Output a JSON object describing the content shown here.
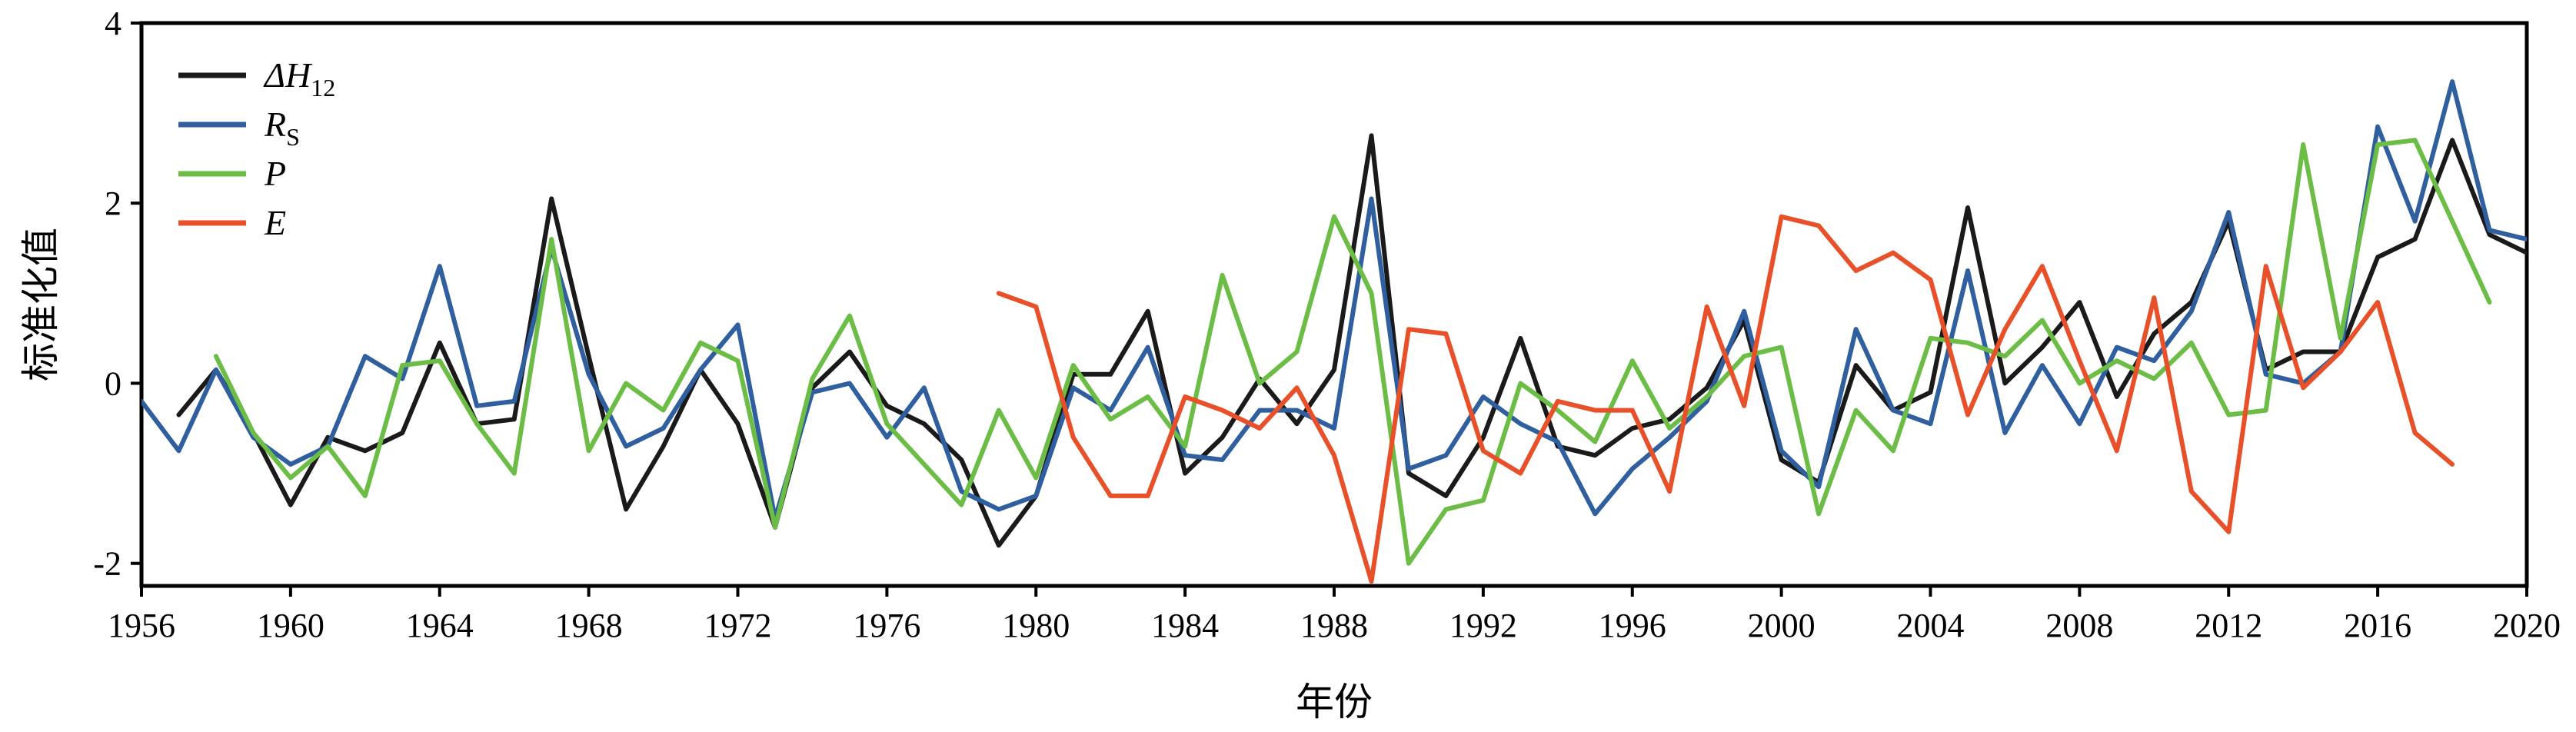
{
  "chart_data": {
    "type": "line",
    "xlabel": "年份",
    "ylabel": "标准化值",
    "xlim": [
      1956,
      2020
    ],
    "ylim": [
      -2.25,
      4
    ],
    "xticks": [
      "1956",
      "1960",
      "1964",
      "1968",
      "1972",
      "1976",
      "1980",
      "1984",
      "1988",
      "1992",
      "1996",
      "2000",
      "2004",
      "2008",
      "2012",
      "2016",
      "2020"
    ],
    "yticks": [
      "-2",
      "0",
      "2",
      "4"
    ],
    "legend_position": "top-left",
    "series": [
      {
        "key": "dH12",
        "legend_main": "ΔH",
        "legend_sub": "12",
        "color": "#1a1a1a",
        "x": [
          1957,
          1958,
          1959,
          1960,
          1961,
          1962,
          1963,
          1964,
          1965,
          1966,
          1967,
          1968,
          1969,
          1970,
          1971,
          1972,
          1973,
          1974,
          1975,
          1976,
          1977,
          1978,
          1979,
          1980,
          1981,
          1982,
          1983,
          1984,
          1985,
          1986,
          1987,
          1988,
          1989,
          1990,
          1991,
          1992,
          1993,
          1994,
          1995,
          1996,
          1997,
          1998,
          1999,
          2000,
          2001,
          2002,
          2003,
          2004,
          2005,
          2006,
          2007,
          2008,
          2009,
          2010,
          2011,
          2012,
          2013,
          2014,
          2015,
          2016,
          2017,
          2018,
          2019,
          2020
        ],
        "y": [
          -0.35,
          0.15,
          -0.55,
          -1.35,
          -0.6,
          -0.75,
          -0.55,
          0.45,
          -0.45,
          -0.4,
          2.05,
          0.3,
          -1.4,
          -0.7,
          0.15,
          -0.45,
          -1.6,
          -0.05,
          0.35,
          -0.25,
          -0.45,
          -0.85,
          -1.8,
          -1.25,
          0.1,
          0.1,
          0.8,
          -1.0,
          -0.6,
          0.05,
          -0.45,
          0.15,
          2.75,
          -1.0,
          -1.25,
          -0.6,
          0.5,
          -0.7,
          -0.8,
          -0.5,
          -0.4,
          -0.05,
          0.7,
          -0.85,
          -1.1,
          0.2,
          -0.3,
          -0.1,
          1.95,
          0.0,
          0.4,
          0.9,
          -0.15,
          0.55,
          0.9,
          1.8,
          0.15,
          0.35,
          0.35,
          1.4,
          1.6,
          2.7,
          1.65,
          1.45
        ]
      },
      {
        "key": "Rs",
        "legend_main": "R",
        "legend_sub": "S",
        "color": "#2f5f9f",
        "x": [
          1956,
          1957,
          1958,
          1959,
          1960,
          1961,
          1962,
          1963,
          1964,
          1965,
          1966,
          1967,
          1968,
          1969,
          1970,
          1971,
          1972,
          1973,
          1974,
          1975,
          1976,
          1977,
          1978,
          1979,
          1980,
          1981,
          1982,
          1983,
          1984,
          1985,
          1986,
          1987,
          1988,
          1989,
          1990,
          1991,
          1992,
          1993,
          1994,
          1995,
          1996,
          1997,
          1998,
          1999,
          2000,
          2001,
          2002,
          2003,
          2004,
          2005,
          2006,
          2007,
          2008,
          2009,
          2010,
          2011,
          2012,
          2013,
          2014,
          2015,
          2016,
          2017,
          2018,
          2019,
          2020
        ],
        "y": [
          -0.2,
          -0.75,
          0.15,
          -0.6,
          -0.9,
          -0.7,
          0.3,
          0.05,
          1.3,
          -0.25,
          -0.2,
          1.5,
          0.1,
          -0.7,
          -0.5,
          0.15,
          0.65,
          -1.5,
          -0.1,
          0.0,
          -0.6,
          -0.05,
          -1.2,
          -1.4,
          -1.25,
          -0.05,
          -0.3,
          0.4,
          -0.8,
          -0.85,
          -0.3,
          -0.3,
          -0.5,
          2.05,
          -0.95,
          -0.8,
          -0.15,
          -0.45,
          -0.65,
          -1.45,
          -0.95,
          -0.6,
          -0.2,
          0.8,
          -0.75,
          -1.15,
          0.6,
          -0.3,
          -0.45,
          1.25,
          -0.55,
          0.2,
          -0.45,
          0.4,
          0.25,
          0.8,
          1.9,
          0.1,
          0.0,
          0.35,
          2.85,
          1.8,
          3.35,
          1.7,
          1.6
        ]
      },
      {
        "key": "P",
        "legend_main": "P",
        "legend_sub": "",
        "color": "#6bbd45",
        "x": [
          1958,
          1959,
          1960,
          1961,
          1962,
          1963,
          1964,
          1965,
          1966,
          1967,
          1968,
          1969,
          1970,
          1971,
          1972,
          1973,
          1974,
          1975,
          1976,
          1977,
          1978,
          1979,
          1980,
          1981,
          1982,
          1983,
          1984,
          1985,
          1986,
          1987,
          1988,
          1989,
          1990,
          1991,
          1992,
          1993,
          1994,
          1995,
          1996,
          1997,
          1998,
          1999,
          2000,
          2001,
          2002,
          2003,
          2004,
          2005,
          2006,
          2007,
          2008,
          2009,
          2010,
          2011,
          2012,
          2013,
          2014,
          2015,
          2016,
          2017,
          2018,
          2019
        ],
        "y": [
          0.3,
          -0.55,
          -1.05,
          -0.7,
          -1.25,
          0.2,
          0.25,
          -0.45,
          -1.0,
          1.6,
          -0.75,
          0.0,
          -0.3,
          0.45,
          0.25,
          -1.6,
          0.05,
          0.75,
          -0.45,
          -0.9,
          -1.35,
          -0.3,
          -1.05,
          0.2,
          -0.4,
          -0.15,
          -0.7,
          1.2,
          0.0,
          0.35,
          1.85,
          1.0,
          -2.0,
          -1.4,
          -1.3,
          0.0,
          -0.3,
          -0.65,
          0.25,
          -0.5,
          -0.15,
          0.3,
          0.4,
          -1.45,
          -0.3,
          -0.75,
          0.5,
          0.45,
          0.3,
          0.7,
          0.0,
          0.25,
          0.05,
          0.45,
          -0.35,
          -0.3,
          2.65,
          0.5,
          2.65,
          2.7,
          1.8,
          0.9
        ]
      },
      {
        "key": "E",
        "legend_main": "E",
        "legend_sub": "",
        "color": "#e8502a",
        "x": [
          1979,
          1980,
          1981,
          1982,
          1983,
          1984,
          1985,
          1986,
          1987,
          1988,
          1989,
          1990,
          1991,
          1992,
          1993,
          1994,
          1995,
          1996,
          1997,
          1998,
          1999,
          2000,
          2001,
          2002,
          2003,
          2004,
          2005,
          2006,
          2007,
          2008,
          2009,
          2010,
          2011,
          2012,
          2013,
          2014,
          2015,
          2016,
          2017,
          2018
        ],
        "y": [
          1.0,
          0.85,
          -0.6,
          -1.25,
          -1.25,
          -0.15,
          -0.3,
          -0.5,
          -0.05,
          -0.8,
          -2.2,
          0.6,
          0.55,
          -0.75,
          -1.0,
          -0.2,
          -0.3,
          -0.3,
          -1.2,
          0.85,
          -0.25,
          1.85,
          1.75,
          1.25,
          1.45,
          1.15,
          -0.35,
          0.6,
          1.3,
          0.25,
          -0.75,
          0.95,
          -1.2,
          -1.65,
          1.3,
          -0.05,
          0.35,
          0.9,
          -0.55,
          -0.9
        ]
      }
    ]
  }
}
